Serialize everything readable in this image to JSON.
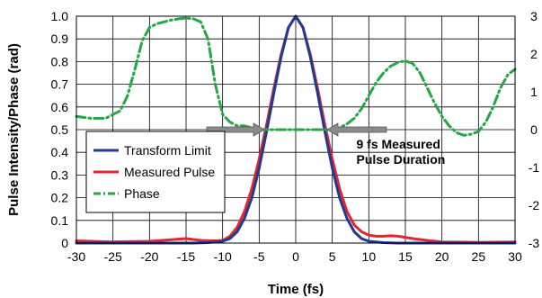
{
  "chart_data": {
    "type": "line",
    "title": "",
    "xlabel": "Time (fs)",
    "ylabel": "Pulse Intensity/Phase (rad)",
    "xlim": [
      -30,
      30
    ],
    "ylim": [
      0,
      1.0
    ],
    "y2lim": [
      -3,
      3
    ],
    "grid": true,
    "legend_position": "left-center",
    "x_ticks": [
      "-30",
      "-25",
      "-20",
      "-15",
      "-10",
      "-5",
      "0",
      "5",
      "10",
      "15",
      "20",
      "25",
      "30"
    ],
    "y_ticks": [
      "0",
      "0.1",
      "0.2",
      "0.3",
      "0.4",
      "0.5",
      "0.6",
      "0.7",
      "0.8",
      "0.9",
      "1.0"
    ],
    "y2_ticks": [
      "-3",
      "-2",
      "-1",
      "0",
      "1",
      "2",
      "3"
    ],
    "series": [
      {
        "name": "Transform Limit",
        "color": "#1f3a93",
        "axis": "left",
        "x": [
          -30,
          -14,
          -12,
          -10,
          -9,
          -8,
          -7,
          -6,
          -5,
          -4,
          -3,
          -2,
          -1,
          0,
          1,
          2,
          3,
          4,
          5,
          6,
          7,
          8,
          9,
          10,
          12,
          14,
          30
        ],
        "y": [
          0,
          0,
          0.002,
          0.008,
          0.02,
          0.05,
          0.11,
          0.2,
          0.33,
          0.49,
          0.66,
          0.82,
          0.95,
          1.0,
          0.95,
          0.82,
          0.66,
          0.49,
          0.33,
          0.2,
          0.11,
          0.05,
          0.02,
          0.008,
          0.002,
          0,
          0
        ]
      },
      {
        "name": "Measured Pulse",
        "color": "#e8232b",
        "axis": "left",
        "x": [
          -30,
          -25,
          -20,
          -17,
          -15,
          -13,
          -11,
          -10,
          -9,
          -8,
          -7,
          -6,
          -5,
          -4,
          -3,
          -2,
          -1,
          0,
          1,
          2,
          3,
          4,
          5,
          6,
          7,
          8,
          9,
          10,
          11,
          12,
          13,
          14,
          16,
          18,
          20,
          25,
          30
        ],
        "y": [
          0.01,
          0.005,
          0.008,
          0.015,
          0.02,
          0.012,
          0.01,
          0.012,
          0.03,
          0.07,
          0.14,
          0.24,
          0.37,
          0.52,
          0.68,
          0.83,
          0.95,
          1.0,
          0.95,
          0.83,
          0.68,
          0.52,
          0.37,
          0.24,
          0.14,
          0.08,
          0.05,
          0.035,
          0.03,
          0.03,
          0.032,
          0.03,
          0.02,
          0.012,
          0.005,
          0.003,
          0.005
        ]
      },
      {
        "name": "Phase",
        "color": "#22a845",
        "axis": "right",
        "x": [
          -30,
          -28,
          -26,
          -24,
          -23,
          -22,
          -21,
          -20,
          -19,
          -18,
          -17,
          -16,
          -15,
          -14,
          -13,
          -12,
          -11,
          -10,
          -9,
          -8,
          -7,
          -6,
          -5,
          -4,
          -2,
          0,
          2,
          4,
          5,
          6,
          7,
          8,
          9,
          10,
          11,
          12,
          13,
          14,
          15,
          16,
          17,
          18,
          19,
          20,
          21,
          22,
          23,
          24,
          25,
          26,
          27,
          28,
          29,
          30
        ],
        "y": [
          0.35,
          0.3,
          0.3,
          0.5,
          0.9,
          1.6,
          2.35,
          2.7,
          2.8,
          2.85,
          2.9,
          2.93,
          2.95,
          2.93,
          2.85,
          2.4,
          1.2,
          0.4,
          0.2,
          0.1,
          0.1,
          0.05,
          0.0,
          0.0,
          0.0,
          0.0,
          0.0,
          0.0,
          0.0,
          0.05,
          0.15,
          0.3,
          0.55,
          0.9,
          1.25,
          1.5,
          1.68,
          1.78,
          1.82,
          1.75,
          1.5,
          1.1,
          0.7,
          0.35,
          0.1,
          -0.08,
          -0.15,
          -0.12,
          -0.05,
          0.2,
          0.6,
          1.1,
          1.45,
          1.6
        ]
      }
    ],
    "annotations": [
      {
        "text_lines": [
          "9 fs Measured",
          "Pulse Duration"
        ],
        "arrow_left_tip_x": -4.3,
        "arrow_right_tip_x": 4.3,
        "y": 0.5
      }
    ]
  }
}
